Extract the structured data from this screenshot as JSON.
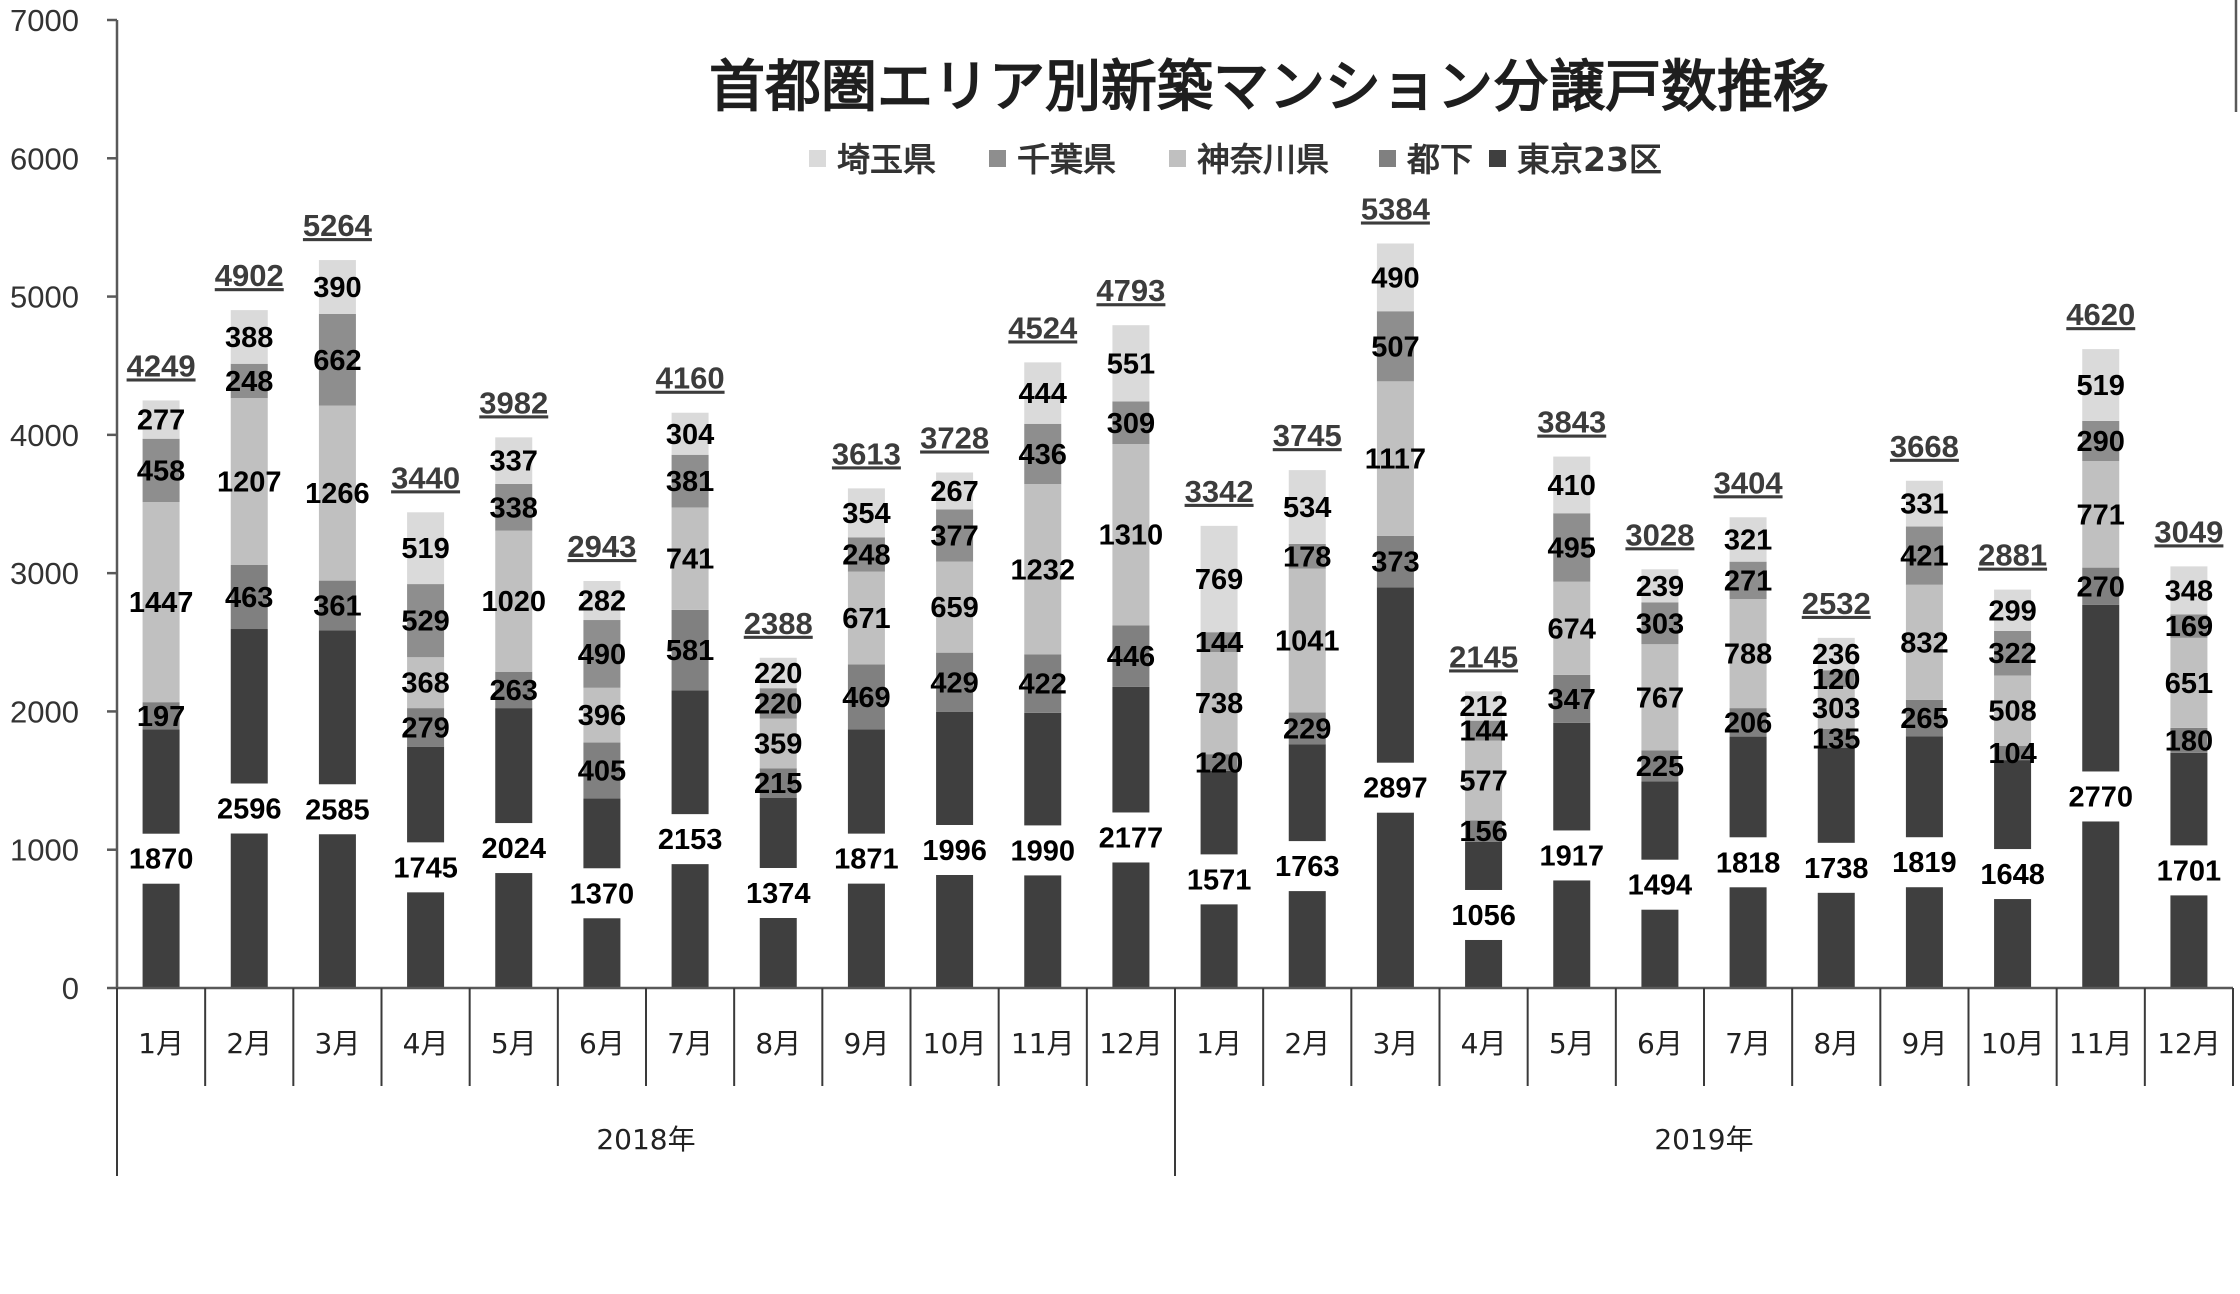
{
  "chart_data": {
    "type": "bar",
    "stacked": true,
    "title": "首都圏エリア別新築マンション分譲戸数推移",
    "ylim": [
      0,
      7000
    ],
    "yticks": [
      0,
      1000,
      2000,
      3000,
      4000,
      5000,
      6000,
      7000
    ],
    "grid": false,
    "legend_position": "top",
    "categories": [
      "1月",
      "2月",
      "3月",
      "4月",
      "5月",
      "6月",
      "7月",
      "8月",
      "9月",
      "10月",
      "11月",
      "12月",
      "1月",
      "2月",
      "3月",
      "4月",
      "5月",
      "6月",
      "7月",
      "8月",
      "9月",
      "10月",
      "11月",
      "12月"
    ],
    "category_groups": [
      {
        "label": "2018年",
        "count": 12
      },
      {
        "label": "2019年",
        "count": 12
      }
    ],
    "series": [
      {
        "name": "東京23区",
        "color": "#3f3f3f",
        "values": [
          1870,
          2596,
          2585,
          1745,
          2024,
          1370,
          2153,
          1374,
          1871,
          1996,
          1990,
          2177,
          1571,
          1763,
          2897,
          1056,
          1917,
          1494,
          1818,
          1738,
          1819,
          1648,
          2770,
          1701
        ]
      },
      {
        "name": "都下",
        "color": "#808080",
        "values": [
          197,
          463,
          361,
          279,
          263,
          405,
          581,
          215,
          469,
          429,
          422,
          446,
          120,
          229,
          373,
          156,
          347,
          225,
          206,
          135,
          265,
          104,
          270,
          180
        ]
      },
      {
        "name": "神奈川県",
        "color": "#c0c0c0",
        "values": [
          1447,
          1207,
          1266,
          368,
          1020,
          396,
          741,
          359,
          671,
          659,
          1232,
          1310,
          738,
          1041,
          1117,
          577,
          674,
          767,
          788,
          303,
          832,
          508,
          771,
          651
        ]
      },
      {
        "name": "千葉県",
        "color": "#8e8e8e",
        "values": [
          458,
          248,
          662,
          529,
          338,
          490,
          381,
          220,
          248,
          377,
          436,
          309,
          144,
          178,
          507,
          144,
          495,
          303,
          271,
          120,
          421,
          322,
          290,
          169
        ]
      },
      {
        "name": "埼玉県",
        "color": "#dadada",
        "values": [
          277,
          388,
          390,
          519,
          337,
          282,
          304,
          220,
          354,
          267,
          444,
          551,
          769,
          534,
          490,
          212,
          410,
          239,
          321,
          236,
          331,
          299,
          519,
          348
        ]
      }
    ],
    "totals": [
      4249,
      4902,
      5264,
      3440,
      3982,
      2943,
      4160,
      2388,
      3613,
      3728,
      4524,
      4793,
      3342,
      3745,
      5384,
      2145,
      3843,
      3028,
      3404,
      2532,
      3668,
      2881,
      4620,
      3049
    ]
  }
}
